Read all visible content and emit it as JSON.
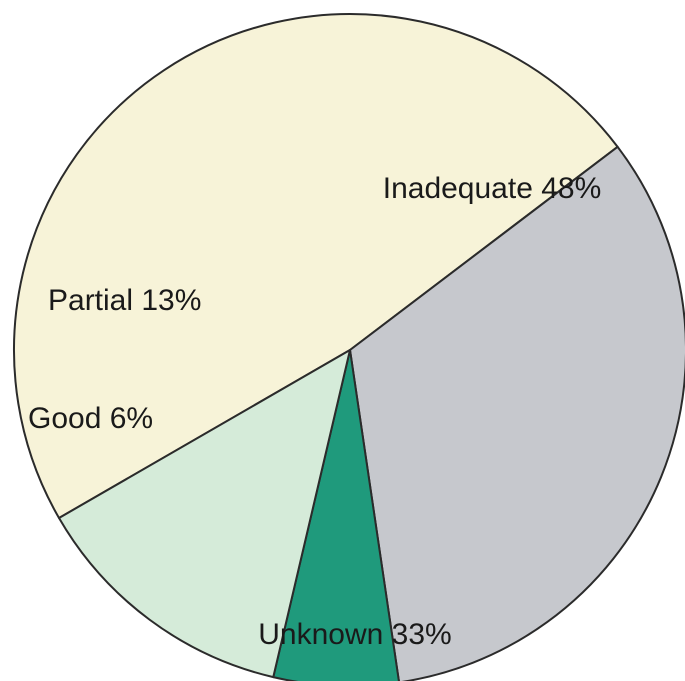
{
  "chart_data": {
    "type": "pie",
    "title": "",
    "slices": [
      {
        "label": "Inadequate",
        "value": 48,
        "display": "Inadequate  48%",
        "color": "#f7f3d8"
      },
      {
        "label": "Unknown",
        "value": 33,
        "display": "Unknown  33%",
        "color": "#c6c8cd"
      },
      {
        "label": "Good",
        "value": 6,
        "display": "Good  6%",
        "color": "#1f9a7c"
      },
      {
        "label": "Partial",
        "value": 13,
        "display": "Partial  13%",
        "color": "#d5ebd9"
      }
    ]
  }
}
